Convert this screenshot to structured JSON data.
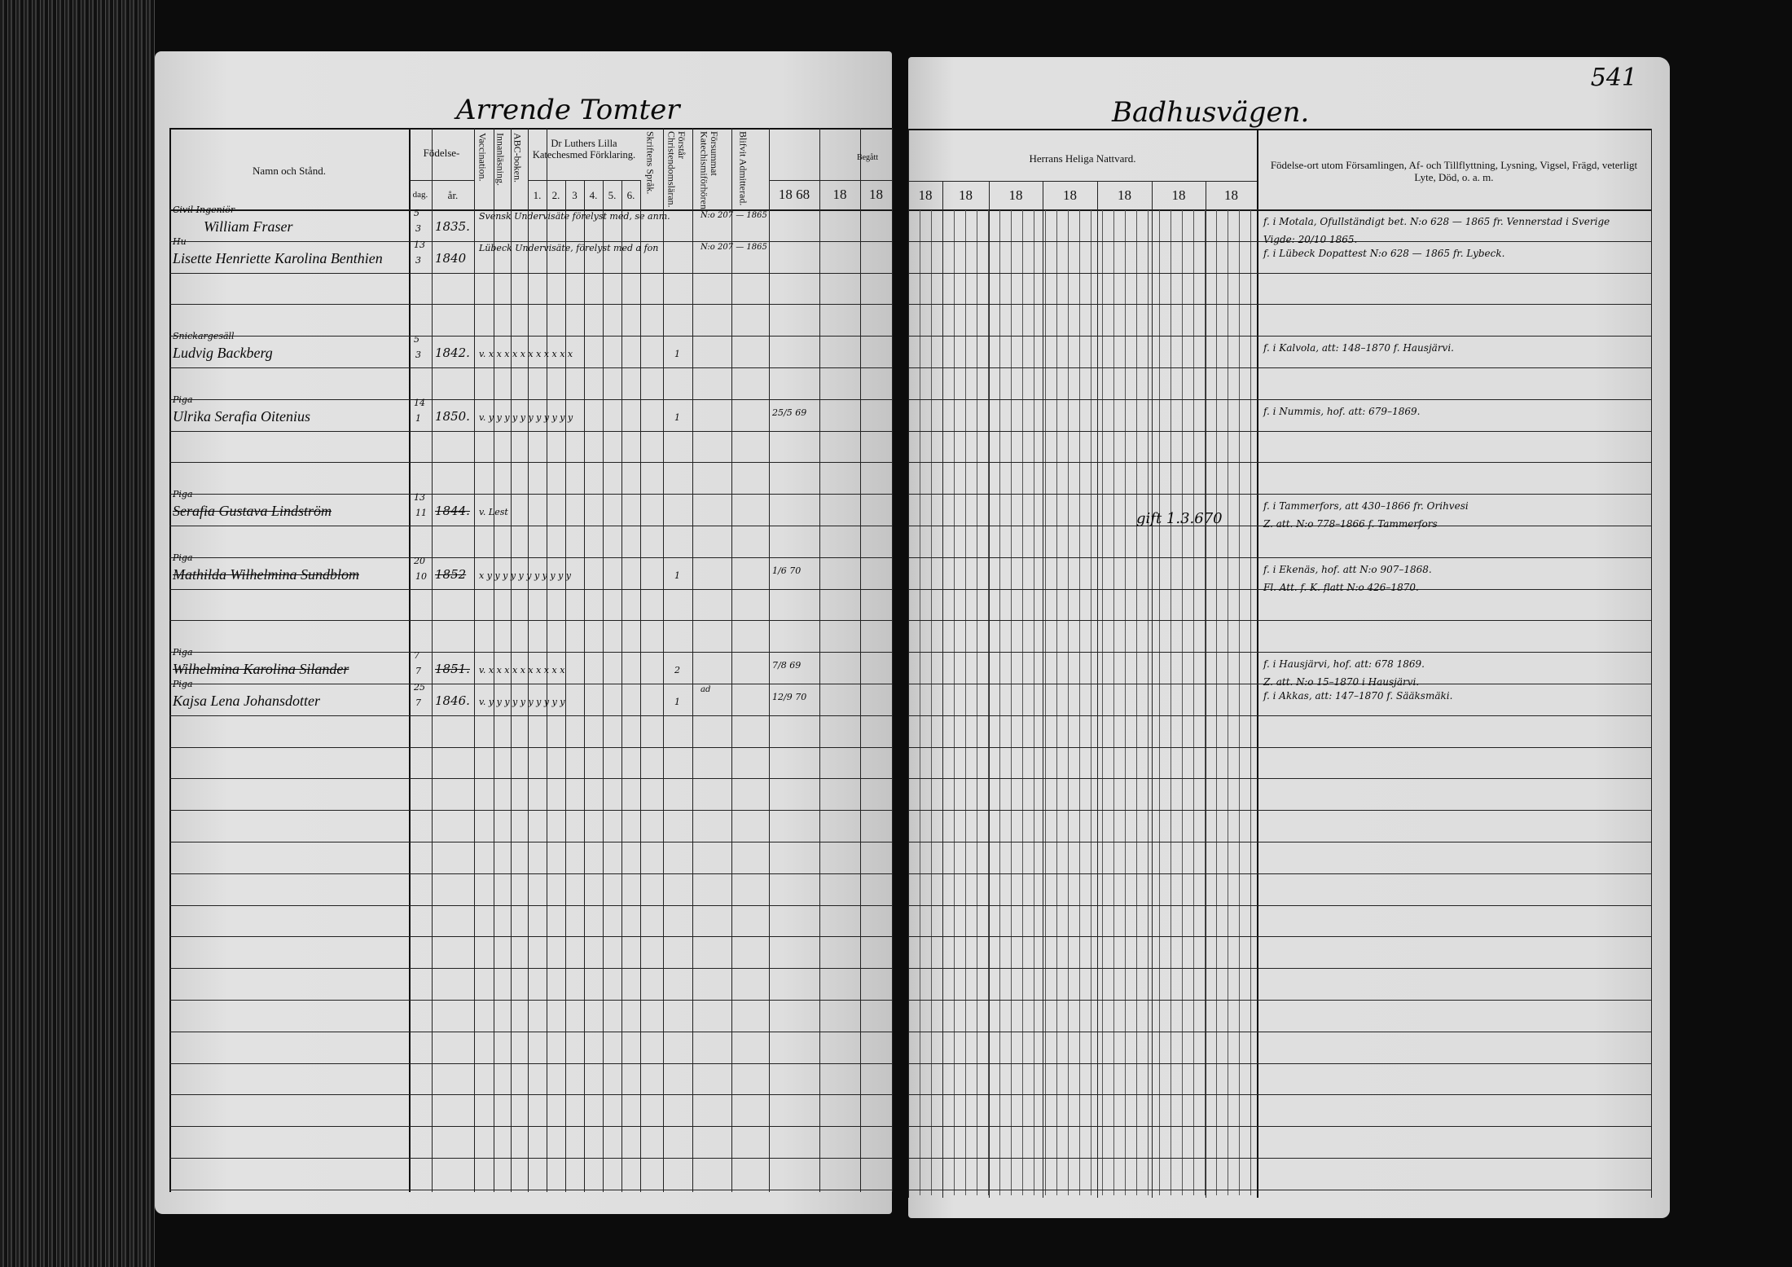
{
  "page_number": "541",
  "left_page": {
    "handwritten_heading": "Arrende Tomter",
    "headers": {
      "name": "Namn och Stånd.",
      "birth": "Födelse-",
      "birth_day": "dag.",
      "birth_year": "år.",
      "vaccination": "Vaccination.",
      "innanlasning": "Innanläsning.",
      "abc": "ABC-boken.",
      "catechism": "Dr Luthers Lilla Katechesmed Förklaring.",
      "catechism_parts": [
        "1.",
        "2.",
        "3",
        "4.",
        "5.",
        "6."
      ],
      "skriftens": "Skriftens Språk.",
      "forstar": "Förstår Christendomsläran.",
      "forsummat": "Försummat Katechismiförhören.",
      "admitterad": "Blifvit Admitterad.",
      "begatt": "Begått",
      "years": [
        "18 68",
        "18",
        "18"
      ]
    }
  },
  "right_page": {
    "handwritten_heading": "Badhusvägen.",
    "headers": {
      "nattvard": "Herrans Heliga Nattvard.",
      "years": [
        "18",
        "18",
        "18",
        "18",
        "18",
        "18",
        "18"
      ],
      "remarks": "Födelse-ort utom Församlingen, Af- och Tillflyttning, Lysning, Vigsel, Frägd, veterligt Lyte, Död, o. a. m."
    },
    "marriage_note": "gift 1.3.670"
  },
  "entries": [
    {
      "row": 0,
      "title": "Civil Ingeniör",
      "name": "William Fraser",
      "struck": false,
      "day": "5",
      "month": "3",
      "year": "1835.",
      "marks": "Svensk Undervisäte förelyst med, se anm.",
      "skrift": "",
      "admitted": "N:o 207 — 1865",
      "begatt": "",
      "remarks": [
        "f. i Motala, Ofullständigt bet. N:o 628 — 1865 fr. Vennerstad i Sverige",
        "Vigde: 20/10 1865."
      ]
    },
    {
      "row": 1,
      "title": "Hu",
      "name": "Lisette Henriette Karolina Benthien",
      "struck": false,
      "day": "13",
      "month": "3",
      "year": "1840",
      "marks": "Lübeck Undervisäte, förelyst med a fon",
      "skrift": "",
      "admitted": "N:o 207 — 1865",
      "begatt": "",
      "remarks": [
        "f. i Lübeck Dopattest N:o 628 — 1865 fr. Lybeck."
      ]
    },
    {
      "row": 4,
      "title": "Snickargesäll",
      "name": "Ludvig Backberg",
      "struck": false,
      "day": "5",
      "month": "3",
      "year": "1842.",
      "marks": "v. x x x x x x x x x x x",
      "skrift": "1",
      "admitted": "",
      "begatt": "",
      "remarks": [
        "f. i Kalvola, att: 148–1870 f. Hausjärvi."
      ]
    },
    {
      "row": 6,
      "title": "Piga",
      "name": "Ulrika Serafia Oitenius",
      "struck": false,
      "day": "14",
      "month": "1",
      "year": "1850.",
      "marks": "v. y y y y y y y y y y y",
      "skrift": "1",
      "admitted": "",
      "begatt": "25/5 69",
      "remarks": [
        "f. i Nummis, hof. att: 679–1869."
      ]
    },
    {
      "row": 9,
      "title": "Piga",
      "name": "Serafia Gustava Lindström",
      "struck": true,
      "day": "13",
      "month": "11",
      "year": "1844.",
      "marks": "v. Lest",
      "skrift": "",
      "admitted": "",
      "begatt": "",
      "remarks": [
        "f. i Tammerfors, att 430–1866 fr. Orihvesi",
        "Z. att. N:o 778–1866 f. Tammerfors"
      ]
    },
    {
      "row": 11,
      "title": "Piga",
      "name": "Mathilda Wilhelmina Sundblom",
      "struck": true,
      "day": "20",
      "month": "10",
      "year": "1852",
      "marks": "x y y y y y y y y y y y",
      "skrift": "1",
      "admitted": "",
      "begatt": "1/6 70",
      "remarks": [
        "f. i Ekenäs, hof. att N:o 907–1868.",
        "Fl. Att. f. K. flatt N:o 426–1870."
      ]
    },
    {
      "row": 14,
      "title": "Piga",
      "name": "Wilhelmina Karolina Silander",
      "struck": true,
      "day": "7",
      "month": "7",
      "year": "1851.",
      "marks": "v. x x x x x x x x x x",
      "skrift": "2",
      "admitted": "",
      "begatt": "7/8 69",
      "remarks": [
        "f. i Hausjärvi, hof. att: 678 1869.",
        "Z. att. N:o 15–1870 i Hausjärvi."
      ]
    },
    {
      "row": 15,
      "title": "Piga",
      "name": "Kajsa Lena Johansdotter",
      "struck": false,
      "day": "25",
      "month": "7",
      "year": "1846.",
      "marks": "v. y y y y y y y y y y",
      "skrift": "1",
      "admitted": "ad",
      "begatt": "12/9 70",
      "remarks": [
        "f. i Akkas, att: 147–1870 f. Sääksmäki."
      ]
    }
  ]
}
